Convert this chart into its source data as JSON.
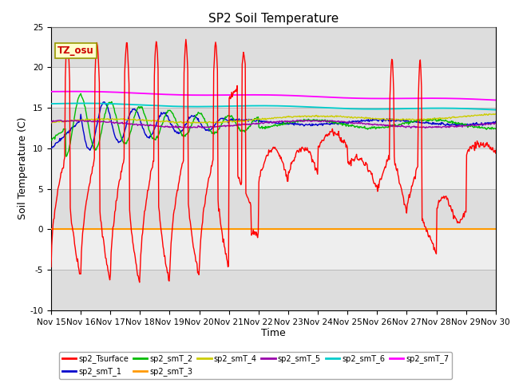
{
  "title": "SP2 Soil Temperature",
  "xlabel": "Time",
  "ylabel": "Soil Temperature (C)",
  "ylim": [
    -10,
    25
  ],
  "xlim": [
    0,
    15
  ],
  "xtick_labels": [
    "Nov 15",
    "Nov 16",
    "Nov 17",
    "Nov 18",
    "Nov 19",
    "Nov 20",
    "Nov 21",
    "Nov 22",
    "Nov 23",
    "Nov 24",
    "Nov 25",
    "Nov 26",
    "Nov 27",
    "Nov 28",
    "Nov 29",
    "Nov 30"
  ],
  "xtick_positions": [
    0,
    1,
    2,
    3,
    4,
    5,
    6,
    7,
    8,
    9,
    10,
    11,
    12,
    13,
    14,
    15
  ],
  "ytick_positions": [
    -10,
    -5,
    0,
    5,
    10,
    15,
    20,
    25
  ],
  "colors": {
    "sp2_Tsurface": "#FF0000",
    "sp2_smT_1": "#0000CC",
    "sp2_smT_2": "#00BB00",
    "sp2_smT_3": "#FF9900",
    "sp2_smT_4": "#CCCC00",
    "sp2_smT_5": "#9900AA",
    "sp2_smT_6": "#00CCCC",
    "sp2_smT_7": "#FF00FF"
  },
  "tz_label": "TZ_osu",
  "background_color": "#FFFFFF",
  "plot_bg_color": "#DDDDDD",
  "title_fontsize": 11,
  "axis_label_fontsize": 9,
  "tick_fontsize": 7.5
}
